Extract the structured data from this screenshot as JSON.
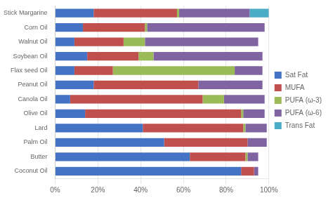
{
  "chart_data": {
    "type": "bar",
    "orientation": "horizontal",
    "stacked": true,
    "categories": [
      "Stick Margarine",
      "Corn Oil",
      "Walnut Oil",
      "Soybean Oil",
      "Flax seed Oil",
      "Peanut Oil",
      "Canola Oil",
      "Olive Oil",
      "Lard",
      "Palm Oil",
      "Butter",
      "Coconut Oil"
    ],
    "series": [
      {
        "name": "Sat Fat",
        "color": "#4472c4",
        "values": [
          18,
          13,
          9,
          15,
          9,
          18,
          7,
          14,
          41,
          51,
          63,
          87
        ]
      },
      {
        "name": "MUFA",
        "color": "#c0504d",
        "values": [
          39,
          29,
          23,
          24,
          18,
          49,
          62,
          73,
          47,
          39,
          26,
          6
        ]
      },
      {
        "name": "PUFA (ω-3)",
        "color": "#9bbb59",
        "values": [
          1,
          1,
          10,
          7,
          57,
          0,
          10,
          1,
          1,
          0,
          1,
          0
        ]
      },
      {
        "name": "PUFA (ω-6)",
        "color": "#8064a2",
        "values": [
          33,
          55,
          53,
          51,
          13,
          30,
          19,
          10,
          10,
          9,
          5,
          2
        ]
      },
      {
        "name": "Trans Fat",
        "color": "#4bacc6",
        "values": [
          9,
          0,
          0,
          0,
          0,
          0,
          0,
          0,
          0,
          0,
          0,
          0
        ]
      }
    ],
    "xlim": [
      0,
      100
    ],
    "xticks": [
      {
        "value": 0,
        "label": "0%"
      },
      {
        "value": 20,
        "label": "20%"
      },
      {
        "value": 40,
        "label": "40%"
      },
      {
        "value": 60,
        "label": "60%"
      },
      {
        "value": 80,
        "label": "80%"
      },
      {
        "value": 100,
        "label": "100%"
      }
    ],
    "grid": true,
    "legend": "right"
  }
}
